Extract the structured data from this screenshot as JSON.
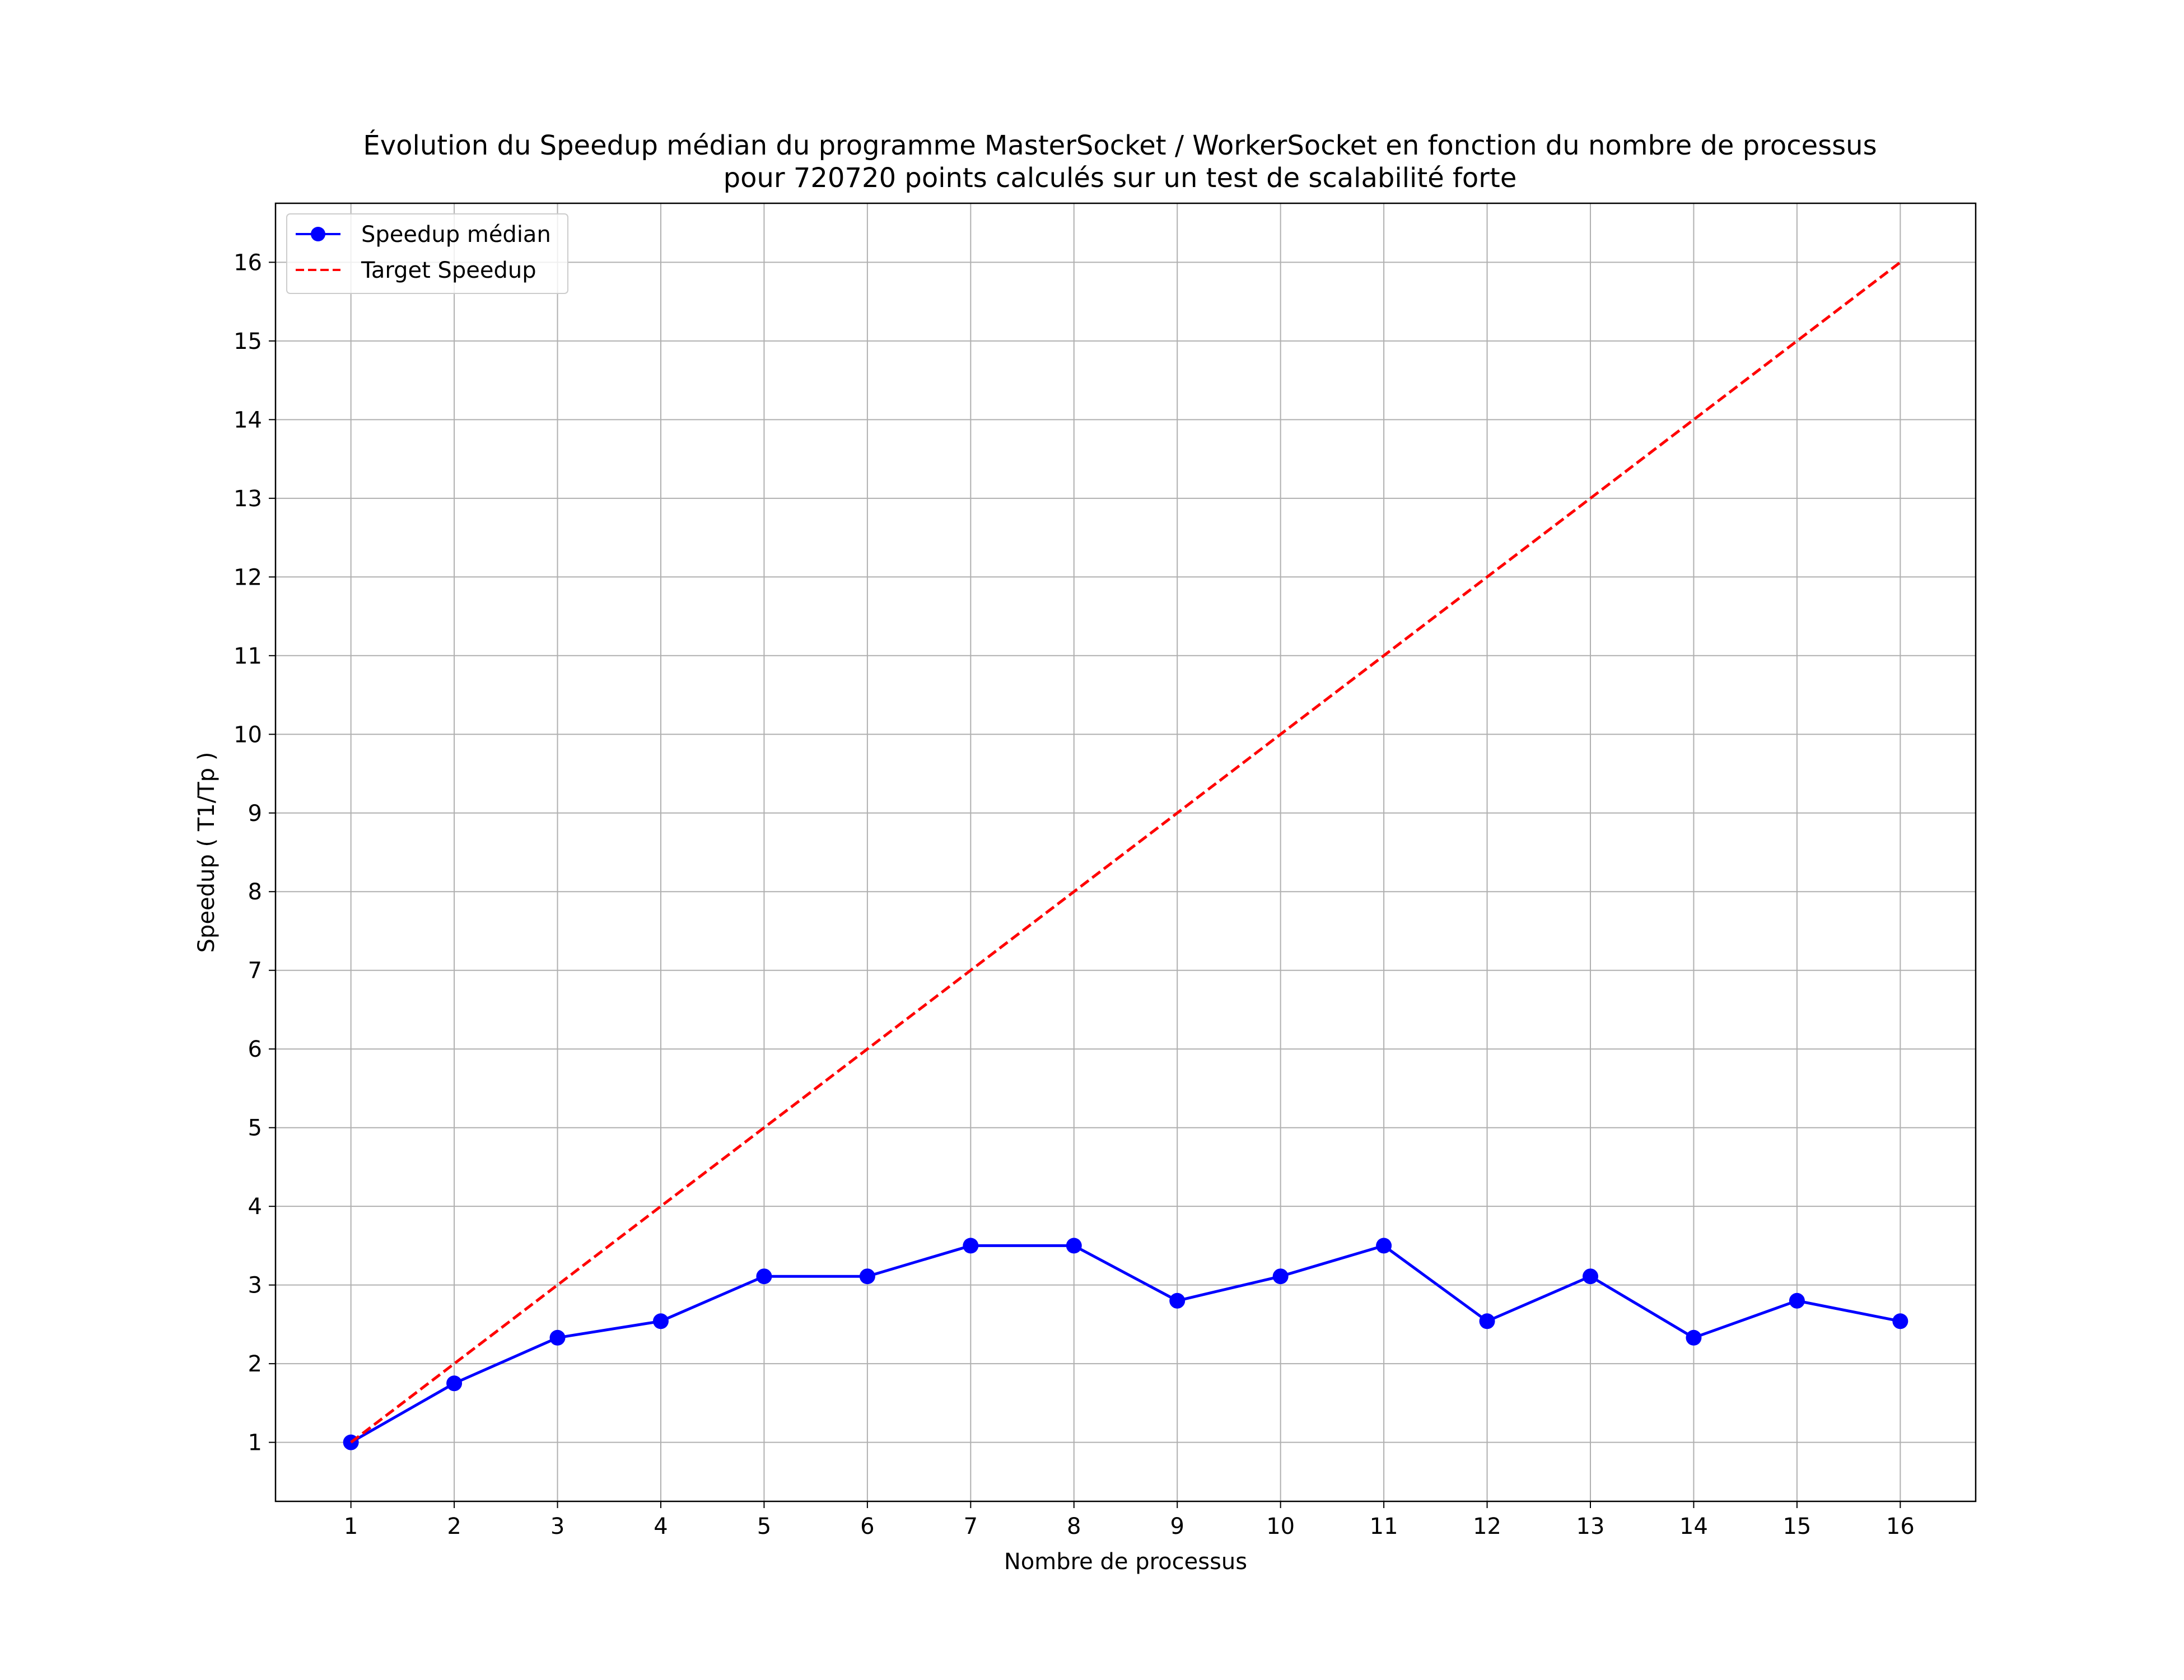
{
  "chart_data": {
    "type": "line",
    "title_line1": "Évolution du Speedup médian du programme MasterSocket / WorkerSocket en fonction du nombre de processus",
    "title_line2": "pour 720720 points calculés sur un test de scalabilité forte",
    "xlabel": "Nombre de processus",
    "ylabel": "Speedup ( T1/Tp )",
    "x": [
      1,
      2,
      3,
      4,
      5,
      6,
      7,
      8,
      9,
      10,
      11,
      12,
      13,
      14,
      15,
      16
    ],
    "xlim": [
      0.27,
      16.73
    ],
    "ylim": [
      0.25,
      16.75
    ],
    "x_ticks": [
      1,
      2,
      3,
      4,
      5,
      6,
      7,
      8,
      9,
      10,
      11,
      12,
      13,
      14,
      15,
      16
    ],
    "y_ticks": [
      1,
      2,
      3,
      4,
      5,
      6,
      7,
      8,
      9,
      10,
      11,
      12,
      13,
      14,
      15,
      16
    ],
    "grid": true,
    "legend_position": "top-left",
    "series": [
      {
        "name": "Speedup médian",
        "color": "#0000ff",
        "style": "solid",
        "marker": "circle",
        "values": [
          1.0,
          1.75,
          2.33,
          2.54,
          3.11,
          3.11,
          3.5,
          3.5,
          2.8,
          3.11,
          3.5,
          2.54,
          3.11,
          2.33,
          2.8,
          2.54
        ]
      },
      {
        "name": "Target Speedup",
        "color": "#ff0000",
        "style": "dashed",
        "marker": "none",
        "values": [
          1,
          2,
          3,
          4,
          5,
          6,
          7,
          8,
          9,
          10,
          11,
          12,
          13,
          14,
          15,
          16
        ]
      }
    ]
  }
}
